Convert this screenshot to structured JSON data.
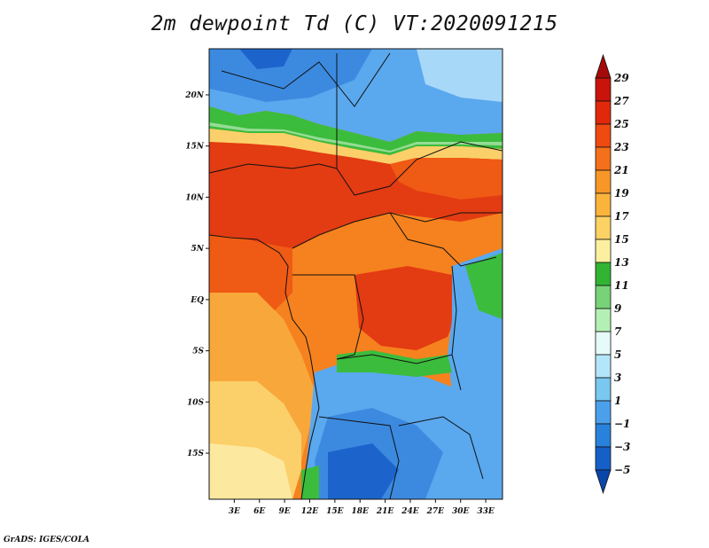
{
  "title": "2m dewpoint Td (C) VT:2020091215",
  "credit": "GrADS: IGES/COLA",
  "map": {
    "lat_labels": [
      "20N",
      "15N",
      "10N",
      "5N",
      "EQ",
      "5S",
      "10S",
      "15S"
    ],
    "lat_values": [
      20,
      15,
      10,
      5,
      0,
      -5,
      -10,
      -15
    ],
    "lon_labels": [
      "3E",
      "6E",
      "9E",
      "12E",
      "15E",
      "18E",
      "21E",
      "24E",
      "27E",
      "30E",
      "33E"
    ],
    "lon_values": [
      3,
      6,
      9,
      12,
      15,
      18,
      21,
      24,
      27,
      30,
      33
    ],
    "lat_range": [
      -19.5,
      24.5
    ],
    "lon_range": [
      0,
      35
    ]
  },
  "colorbar": {
    "levels": [
      "29",
      "27",
      "25",
      "23",
      "21",
      "19",
      "17",
      "15",
      "13",
      "11",
      "9",
      "7",
      "5",
      "3",
      "1",
      "−1",
      "−3",
      "−5"
    ],
    "colors": [
      "#a50a0a",
      "#c8140a",
      "#e1280a",
      "#ef4a10",
      "#f5701a",
      "#f89628",
      "#fab43c",
      "#fcd264",
      "#fcf0a0",
      "#32b432",
      "#78d278",
      "#b4f0b4",
      "#e6fafa",
      "#b4e6fa",
      "#78c8f0",
      "#4ba0eb",
      "#2882dc",
      "#1460c8",
      "#0a46aa"
    ]
  },
  "field_colors": {
    "red": "#e33b12",
    "orange_red": "#ef5a14",
    "orange": "#f5821e",
    "light_orange": "#f8a83a",
    "yellow": "#fbd06a",
    "pale_yellow": "#fde8a0",
    "green": "#3cbc3c",
    "light_green": "#96dc96",
    "light_blue": "#a8d8f8",
    "blue": "#5aa8ee",
    "mid_blue": "#3c8ae0",
    "deep_blue": "#1c64cc"
  }
}
